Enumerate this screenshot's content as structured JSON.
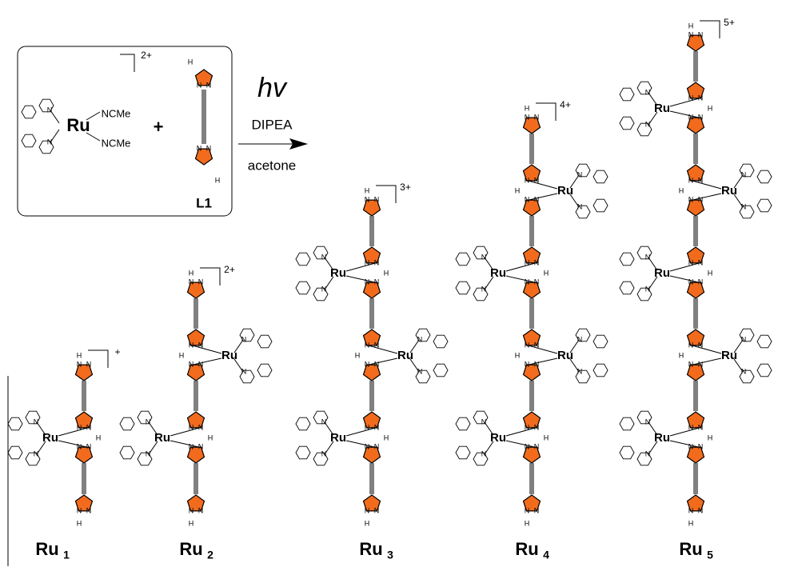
{
  "reactant": {
    "metal": "Ru",
    "ligands": [
      "NCMe",
      "NCMe"
    ],
    "charge": "2+"
  },
  "plus": "+",
  "ligand": {
    "label": "L1"
  },
  "atoms": {
    "N": "N",
    "H": "H"
  },
  "conditions": {
    "light": "hv",
    "base": "DIPEA",
    "solvent": "acetone"
  },
  "products": [
    {
      "name": "Ru",
      "sub": "1",
      "charge": "+",
      "centers": [
        "Ru"
      ]
    },
    {
      "name": "Ru",
      "sub": "2",
      "charge": "2+",
      "centers": [
        "Ru",
        "Ru"
      ]
    },
    {
      "name": "Ru",
      "sub": "3",
      "charge": "3+",
      "centers": [
        "Ru",
        "Ru",
        "Ru"
      ]
    },
    {
      "name": "Ru",
      "sub": "4",
      "charge": "4+",
      "centers": [
        "Ru",
        "Ru",
        "Ru",
        "Ru"
      ]
    },
    {
      "name": "Ru",
      "sub": "5",
      "charge": "5+",
      "centers": [
        "Ru",
        "Ru",
        "Ru",
        "Ru",
        "Ru"
      ]
    }
  ]
}
